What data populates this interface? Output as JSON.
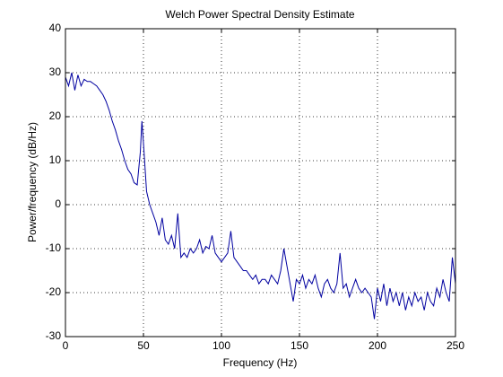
{
  "chart_data": {
    "type": "line",
    "title": "Welch Power Spectral Density Estimate",
    "xlabel": "Frequency (Hz)",
    "ylabel": "Power/frequency (dB/Hz)",
    "x": [
      0,
      2,
      4,
      6,
      8,
      10,
      12,
      14,
      16,
      18,
      20,
      22,
      24,
      26,
      28,
      30,
      32,
      34,
      36,
      38,
      40,
      42,
      44,
      46,
      48,
      49,
      50,
      52,
      54,
      56,
      58,
      60,
      62,
      64,
      66,
      68,
      70,
      72,
      74,
      76,
      78,
      80,
      82,
      84,
      86,
      88,
      90,
      92,
      94,
      96,
      98,
      100,
      102,
      104,
      106,
      108,
      110,
      112,
      114,
      116,
      118,
      120,
      122,
      124,
      126,
      128,
      130,
      132,
      134,
      136,
      138,
      140,
      142,
      144,
      146,
      148,
      150,
      152,
      154,
      156,
      158,
      160,
      162,
      164,
      166,
      168,
      170,
      172,
      174,
      176,
      178,
      180,
      182,
      184,
      186,
      188,
      190,
      192,
      194,
      196,
      198,
      200,
      202,
      204,
      206,
      208,
      210,
      212,
      214,
      216,
      218,
      220,
      222,
      224,
      226,
      228,
      230,
      232,
      234,
      236,
      238,
      240,
      242,
      244,
      246,
      248,
      250
    ],
    "series": [
      {
        "color": "#0000a0",
        "values": [
          29,
          27,
          30,
          26,
          29.5,
          27,
          28.5,
          28,
          28,
          27.5,
          27,
          26,
          25,
          23.5,
          21.5,
          19,
          17,
          14.5,
          12.5,
          10,
          8,
          7,
          5,
          4.5,
          12,
          19,
          14,
          3,
          0,
          -2,
          -4,
          -7,
          -3,
          -8,
          -9,
          -7,
          -10,
          -2,
          -12,
          -11,
          -12,
          -10,
          -11,
          -10,
          -8,
          -11,
          -9.5,
          -10,
          -7,
          -11,
          -12,
          -13,
          -12,
          -11,
          -6,
          -12,
          -13,
          -14,
          -15,
          -15,
          -16,
          -17,
          -16,
          -18,
          -17,
          -17,
          -18,
          -16,
          -17,
          -18,
          -15,
          -10,
          -14,
          -18,
          -22,
          -17,
          -18,
          -16,
          -19,
          -17,
          -18,
          -16,
          -19,
          -21,
          -18,
          -17,
          -19,
          -20,
          -18,
          -11,
          -19,
          -18,
          -21,
          -19,
          -17,
          -19,
          -20,
          -19,
          -20,
          -21,
          -26,
          -19,
          -22,
          -18,
          -23,
          -19,
          -22,
          -20,
          -23,
          -20,
          -24,
          -21,
          -23,
          -20,
          -22,
          -21,
          -24,
          -20,
          -22,
          -23,
          -19,
          -21,
          -17,
          -20,
          -22,
          -12,
          -18
        ]
      }
    ],
    "xlim": [
      0,
      250
    ],
    "xticks": [
      0,
      50,
      100,
      150,
      200,
      250
    ],
    "ylim": [
      -30,
      40
    ],
    "yticks": [
      -30,
      -20,
      -10,
      0,
      10,
      20,
      30,
      40
    ],
    "grid": true
  }
}
